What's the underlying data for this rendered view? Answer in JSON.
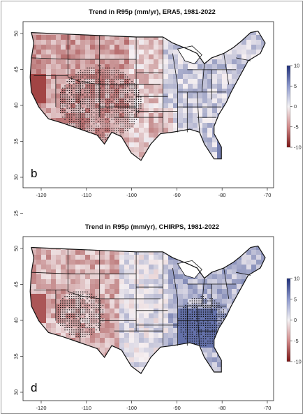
{
  "panels": [
    {
      "id": "b",
      "title": "Trend in R95p (mm/yr), ERA5, 1981-2022",
      "panel_label": "b",
      "xticks": [
        "-120",
        "-110",
        "-100",
        "-90",
        "-80",
        "-70"
      ],
      "yticks": [
        "50",
        "45",
        "40",
        "35",
        "30",
        "25"
      ],
      "colorbar_ticks": [
        "10",
        "5",
        "0",
        "-5",
        "-10"
      ],
      "pattern": "west_dry_east_wet",
      "significance_region": "southwest"
    },
    {
      "id": "d",
      "title": "Trend in R95p (mm/yr), CHIRPS, 1981-2022",
      "panel_label": "d",
      "xticks": [
        "-120",
        "-110",
        "-100",
        "-90",
        "-80",
        "-70"
      ],
      "yticks": [
        "50",
        "45",
        "40",
        "35",
        "30",
        "25"
      ],
      "colorbar_ticks": [
        "10",
        "5",
        "0",
        "-5",
        "-10"
      ],
      "pattern": "west_dry_southeast_wet",
      "significance_region": "southeast"
    }
  ],
  "colors": {
    "positive": "#2b3f8c",
    "negative": "#8e1b1b",
    "neutral": "#f6f0f0",
    "border": "#111111",
    "stipple": "#111111"
  }
}
